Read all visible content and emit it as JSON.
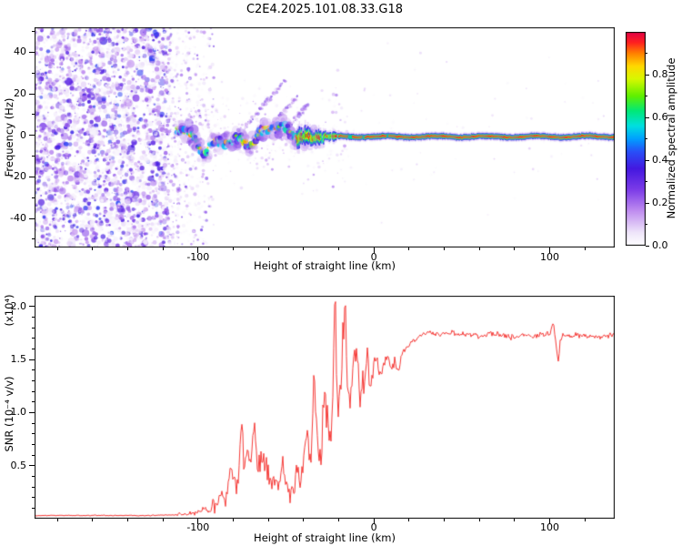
{
  "title": "C2E4.2025.101.08.33.G18",
  "chart_data": [
    {
      "type": "heatmap",
      "title": "C2E4.2025.101.08.33.G18",
      "xlabel": "Height of straight line (km)",
      "ylabel": "Frequency (Hz)",
      "xlim": [
        -193,
        137
      ],
      "ylim": [
        -54,
        52
      ],
      "xticks": [
        -100,
        0,
        100
      ],
      "yticks": [
        40,
        20,
        0,
        -20,
        -40
      ],
      "minor_step": {
        "x": 20,
        "y": 10
      },
      "grid": false,
      "colorbar": {
        "label": "Normalized spectral amplitude",
        "ticks": [
          "0.0",
          "0.2",
          "0.4",
          "0.6",
          "0.8"
        ],
        "range": [
          0,
          1
        ]
      },
      "colormap_stops": [
        [
          0.0,
          "#ffffff"
        ],
        [
          0.06,
          "#efe6fa"
        ],
        [
          0.16,
          "#c18ff0"
        ],
        [
          0.26,
          "#7d3de8"
        ],
        [
          0.36,
          "#4418e0"
        ],
        [
          0.44,
          "#2850f8"
        ],
        [
          0.5,
          "#00a0ff"
        ],
        [
          0.56,
          "#00e0e0"
        ],
        [
          0.63,
          "#00e878"
        ],
        [
          0.7,
          "#60f000"
        ],
        [
          0.78,
          "#d8f800"
        ],
        [
          0.84,
          "#ffd800"
        ],
        [
          0.9,
          "#ff8000"
        ],
        [
          0.95,
          "#ff2020"
        ],
        [
          1.0,
          "#e00048"
        ]
      ],
      "regions": {
        "noise": {
          "x_range": [
            -193,
            -117
          ],
          "value_range": [
            0.03,
            0.43
          ],
          "description": "dense purple speckle noise"
        },
        "noise_fade": {
          "x_range": [
            -117,
            -92
          ]
        },
        "trace": {
          "x_range": [
            -112,
            -28
          ],
          "center_freq_hz": 0,
          "wiggle_amplitude_hz": 7,
          "value_range": [
            0.3,
            0.95
          ],
          "description": "scattered bright blobs along wavy trace near 0 Hz"
        },
        "streaks": [
          [
            -74,
            3,
            -50,
            27
          ],
          [
            -62,
            1,
            -43,
            19
          ],
          [
            -48,
            5,
            -37,
            15
          ]
        ],
        "solid_line": {
          "x_range": [
            -44,
            137
          ],
          "center_freq_hz": -0.6,
          "core_value": 0.97,
          "description": "narrow horizontal band, red core with blue/green/lavender fringes"
        }
      }
    },
    {
      "type": "line",
      "xlabel": "Height of straight line (km)",
      "ylabel": "SNR (10⁻⁴ v/v)",
      "scale_label": "(x10⁴)",
      "xlim": [
        -193,
        137
      ],
      "ylim": [
        0,
        2.1
      ],
      "xticks": [
        -100,
        0,
        100
      ],
      "ytick_labels": [
        "0.5",
        "1.0",
        "1.5",
        "2.0"
      ],
      "minor_step": {
        "x": 20,
        "y": 0.1
      },
      "grid": false,
      "series": [
        {
          "name": "SNR",
          "color": "#f63b38",
          "points": [
            [
              -193,
              0.03
            ],
            [
              -170,
              0.03
            ],
            [
              -150,
              0.03
            ],
            [
              -130,
              0.03
            ],
            [
              -115,
              0.035
            ],
            [
              -108,
              0.04
            ],
            [
              -103,
              0.05
            ],
            [
              -100,
              0.06
            ],
            [
              -97,
              0.09
            ],
            [
              -94,
              0.07
            ],
            [
              -91,
              0.12
            ],
            [
              -89,
              0.09
            ],
            [
              -87,
              0.3
            ],
            [
              -85,
              0.18
            ],
            [
              -83,
              0.25
            ],
            [
              -81,
              0.55
            ],
            [
              -79,
              0.3
            ],
            [
              -77,
              0.45
            ],
            [
              -75,
              1.0
            ],
            [
              -74,
              0.5
            ],
            [
              -72,
              0.62
            ],
            [
              -70,
              0.48
            ],
            [
              -68,
              0.88
            ],
            [
              -66,
              0.45
            ],
            [
              -64,
              0.6
            ],
            [
              -62,
              0.5
            ],
            [
              -60,
              0.42
            ],
            [
              -58,
              0.3
            ],
            [
              -56,
              0.4
            ],
            [
              -54,
              0.28
            ],
            [
              -52,
              0.55
            ],
            [
              -50,
              0.28
            ],
            [
              -48,
              0.22
            ],
            [
              -46,
              0.3
            ],
            [
              -44,
              0.42
            ],
            [
              -42,
              0.32
            ],
            [
              -40,
              0.55
            ],
            [
              -38,
              0.85
            ],
            [
              -36,
              0.5
            ],
            [
              -34,
              1.32
            ],
            [
              -32,
              0.65
            ],
            [
              -30,
              0.55
            ],
            [
              -28,
              1.2
            ],
            [
              -26,
              0.75
            ],
            [
              -24,
              0.9
            ],
            [
              -22,
              2.08
            ],
            [
              -21,
              1.1
            ],
            [
              -20,
              1.0
            ],
            [
              -18,
              1.62
            ],
            [
              -16,
              2.0
            ],
            [
              -15,
              1.2
            ],
            [
              -14,
              1.05
            ],
            [
              -12,
              1.42
            ],
            [
              -10,
              1.55
            ],
            [
              -8,
              1.1
            ],
            [
              -6,
              1.35
            ],
            [
              -4,
              1.5
            ],
            [
              -2,
              1.28
            ],
            [
              0,
              1.45
            ],
            [
              2,
              1.52
            ],
            [
              4,
              1.3
            ],
            [
              6,
              1.48
            ],
            [
              8,
              1.55
            ],
            [
              10,
              1.42
            ],
            [
              12,
              1.5
            ],
            [
              14,
              1.38
            ],
            [
              16,
              1.55
            ],
            [
              18,
              1.6
            ],
            [
              20,
              1.65
            ],
            [
              24,
              1.7
            ],
            [
              28,
              1.74
            ],
            [
              32,
              1.76
            ],
            [
              36,
              1.73
            ],
            [
              40,
              1.74
            ],
            [
              45,
              1.75
            ],
            [
              50,
              1.73
            ],
            [
              55,
              1.74
            ],
            [
              60,
              1.72
            ],
            [
              65,
              1.73
            ],
            [
              70,
              1.74
            ],
            [
              75,
              1.72
            ],
            [
              80,
              1.71
            ],
            [
              85,
              1.73
            ],
            [
              90,
              1.72
            ],
            [
              95,
              1.73
            ],
            [
              100,
              1.74
            ],
            [
              102,
              1.86
            ],
            [
              104,
              1.6
            ],
            [
              105,
              1.48
            ],
            [
              106,
              1.68
            ],
            [
              108,
              1.73
            ],
            [
              112,
              1.72
            ],
            [
              116,
              1.73
            ],
            [
              120,
              1.72
            ],
            [
              125,
              1.71
            ],
            [
              130,
              1.72
            ],
            [
              135,
              1.73
            ]
          ]
        }
      ],
      "noise_regions": [
        {
          "x_range": [
            -193,
            -112
          ],
          "amp": 0.006
        },
        {
          "x_range": [
            -112,
            -92
          ],
          "amp": 0.03
        },
        {
          "x_range": [
            -92,
            -38
          ],
          "amp": 0.14
        },
        {
          "x_range": [
            -38,
            -2
          ],
          "amp": 0.22
        },
        {
          "x_range": [
            -2,
            18
          ],
          "amp": 0.09
        },
        {
          "x_range": [
            18,
            137
          ],
          "amp": 0.032
        }
      ]
    }
  ]
}
